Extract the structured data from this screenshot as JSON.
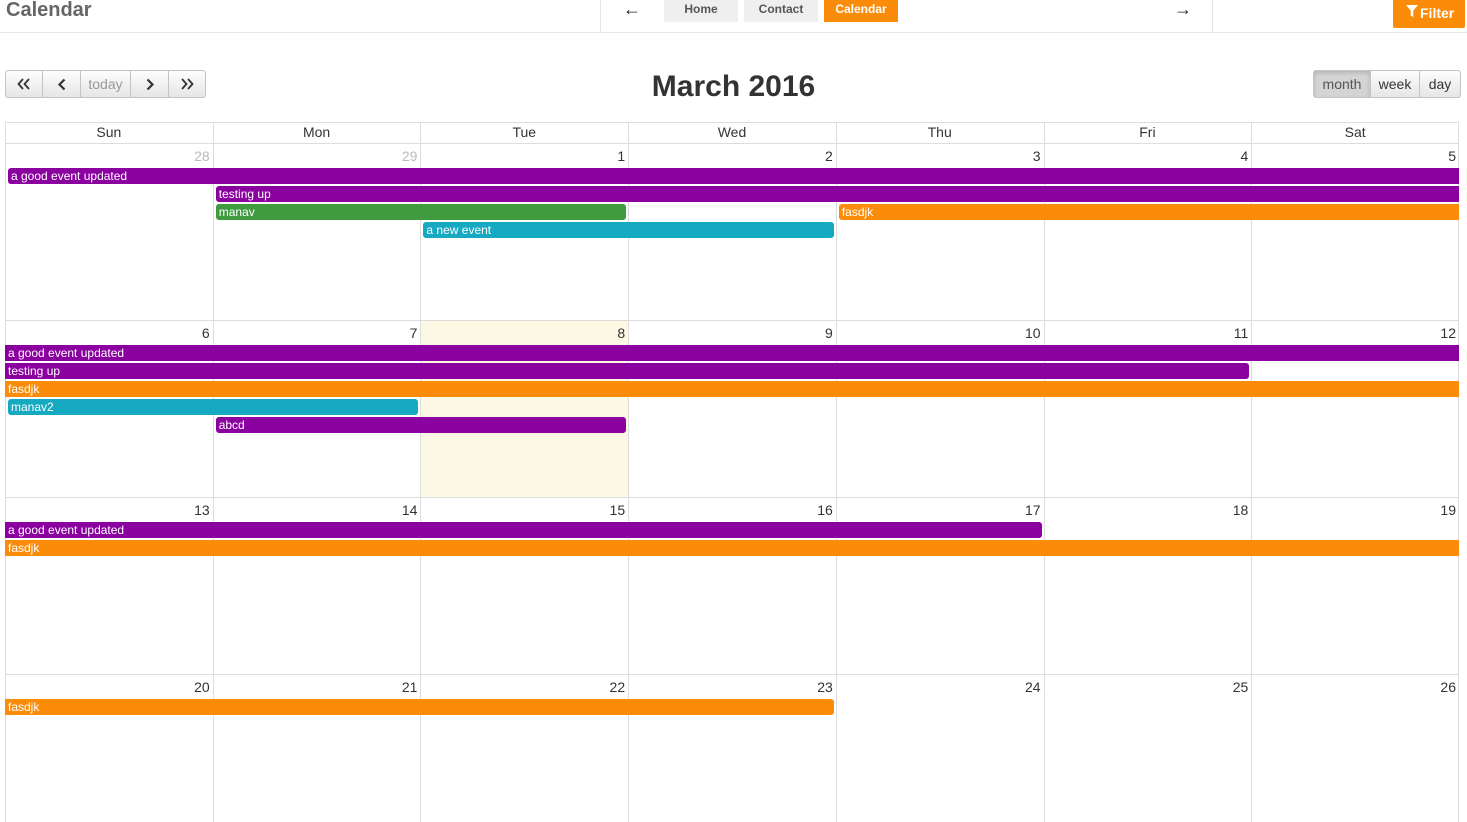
{
  "app": {
    "title": "Calendar"
  },
  "nav": {
    "back_icon": "arrow-left-icon",
    "forward_icon": "arrow-right-icon",
    "tabs": [
      {
        "label": "Home",
        "active": false
      },
      {
        "label": "Contact",
        "active": false
      },
      {
        "label": "Calendar",
        "active": true
      }
    ],
    "filter_label": "Filter",
    "filter_icon": "funnel-icon"
  },
  "toolbar": {
    "prev_year_icon": "double-chevron-left-icon",
    "prev_icon": "chevron-left-icon",
    "today_label": "today",
    "next_icon": "chevron-right-icon",
    "next_year_icon": "double-chevron-right-icon",
    "title": "March 2016",
    "views": [
      {
        "label": "month",
        "active": true
      },
      {
        "label": "week",
        "active": false
      },
      {
        "label": "day",
        "active": false
      }
    ]
  },
  "colors": {
    "purple": "#8a019f",
    "green": "#3e9b3e",
    "orange": "#fb8c0a",
    "teal": "#16a9c2",
    "accent": "#fb8c0a",
    "today_bg": "#fcf8e3"
  },
  "weekdays": [
    "Sun",
    "Mon",
    "Tue",
    "Wed",
    "Thu",
    "Fri",
    "Sat"
  ],
  "weeks": [
    {
      "days": [
        {
          "num": "28",
          "other": true
        },
        {
          "num": "29",
          "other": true
        },
        {
          "num": "1"
        },
        {
          "num": "2"
        },
        {
          "num": "3"
        },
        {
          "num": "4"
        },
        {
          "num": "5"
        }
      ],
      "events": [
        {
          "title": "a good event updated",
          "color": "purple",
          "start": 0,
          "end": 6,
          "row": 0,
          "starts": true,
          "ends": false
        },
        {
          "title": "testing up",
          "color": "purple",
          "start": 1,
          "end": 6,
          "row": 1,
          "starts": true,
          "ends": false
        },
        {
          "title": "manav",
          "color": "green",
          "start": 1,
          "end": 2,
          "row": 2,
          "starts": true,
          "ends": true
        },
        {
          "title": "fasdjk",
          "color": "orange",
          "start": 4,
          "end": 6,
          "row": 2,
          "starts": true,
          "ends": false
        },
        {
          "title": "a new event",
          "color": "teal",
          "start": 2,
          "end": 3,
          "row": 3,
          "starts": true,
          "ends": true
        }
      ]
    },
    {
      "days": [
        {
          "num": "6"
        },
        {
          "num": "7"
        },
        {
          "num": "8",
          "today": true
        },
        {
          "num": "9"
        },
        {
          "num": "10"
        },
        {
          "num": "11"
        },
        {
          "num": "12"
        }
      ],
      "events": [
        {
          "title": "a good event updated",
          "color": "purple",
          "start": 0,
          "end": 6,
          "row": 0,
          "starts": false,
          "ends": false
        },
        {
          "title": "testing up",
          "color": "purple",
          "start": 0,
          "end": 5,
          "row": 1,
          "starts": false,
          "ends": true
        },
        {
          "title": "fasdjk",
          "color": "orange",
          "start": 0,
          "end": 6,
          "row": 2,
          "starts": false,
          "ends": false
        },
        {
          "title": "manav2",
          "color": "teal",
          "start": 0,
          "end": 1,
          "row": 3,
          "starts": true,
          "ends": true
        },
        {
          "title": "abcd",
          "color": "purple",
          "start": 1,
          "end": 2,
          "row": 4,
          "starts": true,
          "ends": true
        }
      ]
    },
    {
      "days": [
        {
          "num": "13"
        },
        {
          "num": "14"
        },
        {
          "num": "15"
        },
        {
          "num": "16"
        },
        {
          "num": "17"
        },
        {
          "num": "18"
        },
        {
          "num": "19"
        }
      ],
      "events": [
        {
          "title": "a good event updated",
          "color": "purple",
          "start": 0,
          "end": 4,
          "row": 0,
          "starts": false,
          "ends": true
        },
        {
          "title": "fasdjk",
          "color": "orange",
          "start": 0,
          "end": 6,
          "row": 1,
          "starts": false,
          "ends": false
        }
      ]
    },
    {
      "days": [
        {
          "num": "20"
        },
        {
          "num": "21"
        },
        {
          "num": "22"
        },
        {
          "num": "23"
        },
        {
          "num": "24"
        },
        {
          "num": "25"
        },
        {
          "num": "26"
        }
      ],
      "events": [
        {
          "title": "fasdjk",
          "color": "orange",
          "start": 0,
          "end": 3,
          "row": 0,
          "starts": false,
          "ends": true
        }
      ]
    }
  ]
}
